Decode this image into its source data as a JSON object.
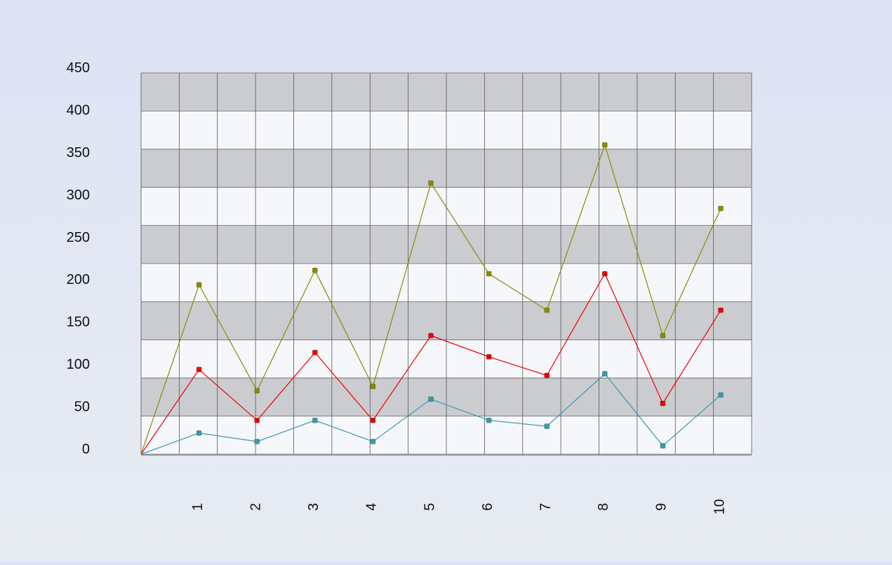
{
  "chart_data": {
    "type": "line",
    "x": [
      0,
      1,
      2,
      3,
      4,
      5,
      6,
      7,
      8,
      9,
      10
    ],
    "x_tick_labels": [
      "1",
      "2",
      "3",
      "4",
      "5",
      "6",
      "7",
      "8",
      "9",
      "10"
    ],
    "y_ticks": [
      0,
      50,
      100,
      150,
      200,
      250,
      300,
      350,
      400,
      450
    ],
    "y_tick_labels": [
      "0",
      "50",
      "100",
      "150",
      "200",
      "250",
      "300",
      "350",
      "400",
      "450"
    ],
    "ylim": [
      0,
      450
    ],
    "grid": true,
    "legend": "none",
    "series": [
      {
        "color": "#8b8b00",
        "values": [
          0,
          200,
          75,
          217,
          80,
          320,
          213,
          170,
          365,
          140,
          290
        ]
      },
      {
        "color": "#ee0000",
        "values": [
          0,
          100,
          40,
          120,
          40,
          140,
          115,
          93,
          213,
          60,
          170
        ]
      },
      {
        "color": "#3a9aaa",
        "values": [
          0,
          25,
          15,
          40,
          15,
          65,
          40,
          33,
          95,
          10,
          70
        ]
      }
    ]
  }
}
